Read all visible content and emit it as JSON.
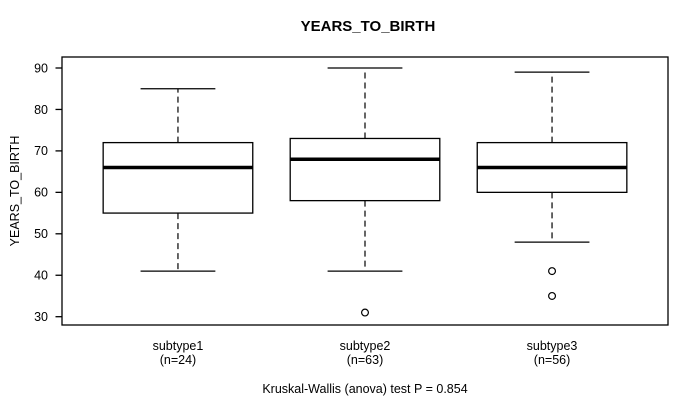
{
  "chart_data": {
    "type": "boxplot",
    "title": "YEARS_TO_BIRTH",
    "ylabel": "YEARS_TO_BIRTH",
    "caption": "Kruskal-Wallis (anova) test P = 0.854",
    "ylim": [
      30,
      90
    ],
    "yticks": [
      30,
      40,
      50,
      60,
      70,
      80,
      90
    ],
    "grid": false,
    "groups": [
      {
        "label": "subtype1",
        "sublabel": "(n=24)",
        "n": 24,
        "whisker_low": 41,
        "q1": 55,
        "median": 66,
        "q3": 72,
        "whisker_high": 85,
        "outliers": []
      },
      {
        "label": "subtype2",
        "sublabel": "(n=63)",
        "n": 63,
        "whisker_low": 41,
        "q1": 58,
        "median": 68,
        "q3": 73,
        "whisker_high": 90,
        "outliers": [
          31
        ]
      },
      {
        "label": "subtype3",
        "sublabel": "(n=56)",
        "n": 56,
        "whisker_low": 48,
        "q1": 60,
        "median": 66,
        "q3": 72,
        "whisker_high": 89,
        "outliers": [
          41,
          35
        ]
      }
    ],
    "colors": {
      "stroke": "#000000",
      "box_fill": "#ffffff",
      "background": "#ffffff"
    }
  }
}
